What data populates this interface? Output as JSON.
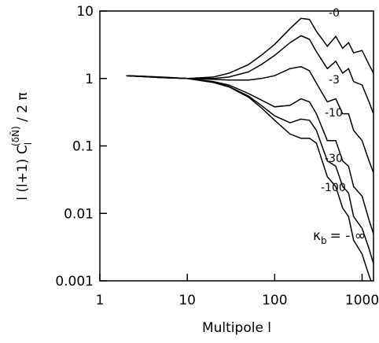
{
  "chart_data": {
    "type": "line",
    "xlabel": "Multipole l",
    "ylabel": {
      "main": "l (l+1) C",
      "sub": "l",
      "sup": "(δÑ)",
      "rest": " / 2 π"
    },
    "x": [
      2,
      3,
      5,
      10,
      20,
      30,
      50,
      70,
      100,
      150,
      200,
      250,
      300,
      400,
      500,
      600,
      700,
      800,
      1000,
      1200,
      1350
    ],
    "series": [
      {
        "name": "-0",
        "color": "#000000",
        "values": [
          1.1,
          1.08,
          1.05,
          1.0,
          1.05,
          1.2,
          1.6,
          2.2,
          3.2,
          5.5,
          7.8,
          7.5,
          5,
          3,
          4.2,
          2.8,
          3.4,
          2.4,
          2.6,
          1.6,
          1.2
        ]
      },
      {
        "color": "#000000",
        "values": [
          1.1,
          1.08,
          1.04,
          1.0,
          1.0,
          1.05,
          1.25,
          1.6,
          2.2,
          3.4,
          4.3,
          3.8,
          2.5,
          1.4,
          1.8,
          1.2,
          1.4,
          0.9,
          0.8,
          0.45,
          0.3
        ]
      },
      {
        "name": "-3",
        "color": "#000000",
        "values": [
          1.1,
          1.08,
          1.04,
          1.0,
          0.97,
          0.95,
          0.95,
          1.0,
          1.1,
          1.4,
          1.5,
          1.3,
          0.85,
          0.45,
          0.5,
          0.3,
          0.3,
          0.17,
          0.12,
          0.06,
          0.04
        ]
      },
      {
        "name": "-10",
        "color": "#000000",
        "values": [
          1.1,
          1.07,
          1.03,
          1.0,
          0.9,
          0.8,
          0.6,
          0.48,
          0.38,
          0.4,
          0.5,
          0.45,
          0.3,
          0.12,
          0.12,
          0.06,
          0.05,
          0.025,
          0.018,
          0.008,
          0.005
        ]
      },
      {
        "name": "-30",
        "color": "#000000",
        "values": [
          1.1,
          1.07,
          1.03,
          1.0,
          0.88,
          0.76,
          0.55,
          0.4,
          0.28,
          0.22,
          0.25,
          0.24,
          0.17,
          0.06,
          0.05,
          0.025,
          0.02,
          0.009,
          0.006,
          0.003,
          0.0018
        ]
      },
      {
        "name": "-100",
        "color": "#000000",
        "values": [
          1.1,
          1.07,
          1.03,
          1.0,
          0.87,
          0.75,
          0.53,
          0.37,
          0.24,
          0.15,
          0.13,
          0.13,
          0.11,
          0.035,
          0.025,
          0.012,
          0.009,
          0.004,
          0.0025,
          0.0012,
          0.0008
        ]
      }
    ],
    "annotation": {
      "symbol": "κ",
      "sub": "b",
      "rest": "= - ∞"
    },
    "xlim": [
      1,
      1350
    ],
    "ylim": [
      0.001,
      10
    ],
    "xticks": [
      1,
      10,
      100,
      1000
    ],
    "yticks": [
      0.001,
      0.01,
      0.1,
      1,
      10
    ],
    "xscale": "log",
    "yscale": "log"
  }
}
